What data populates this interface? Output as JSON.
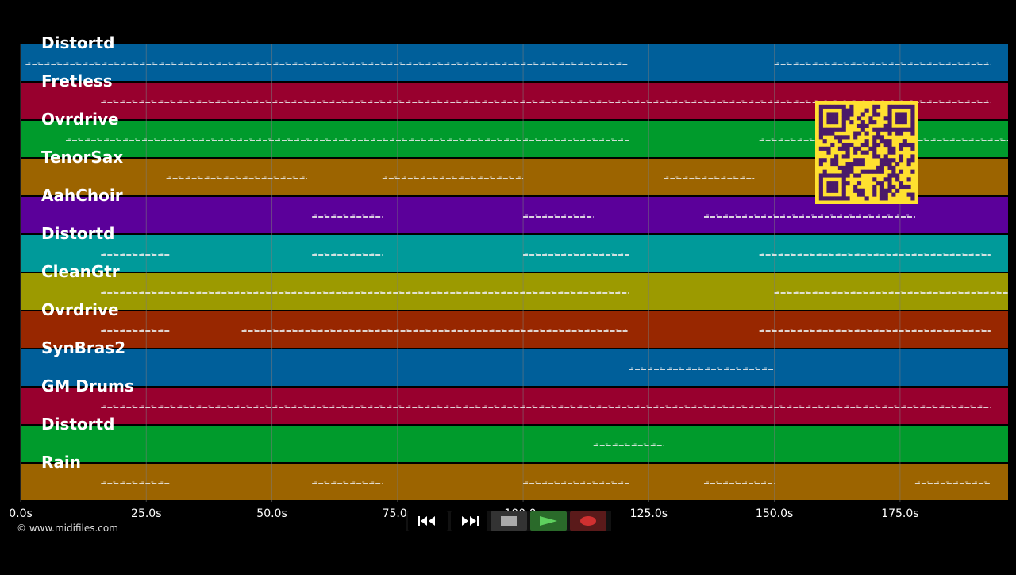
{
  "tracks": [
    {
      "label": "Distortd",
      "color": "#005f9a"
    },
    {
      "label": "Fretless",
      "color": "#98002e"
    },
    {
      "label": "Ovrdrive",
      "color": "#009b2c"
    },
    {
      "label": "TenorSax",
      "color": "#9c6400"
    },
    {
      "label": "AahChoir",
      "color": "#5b009a"
    },
    {
      "label": "Distortd",
      "color": "#009a9a"
    },
    {
      "label": "CleanGtr",
      "color": "#9c9a00"
    },
    {
      "label": "Ovrdrive",
      "color": "#982700"
    },
    {
      "label": "SynBras2",
      "color": "#005f9a"
    },
    {
      "label": "GM Drums",
      "color": "#98002e"
    },
    {
      "label": "Distortd",
      "color": "#009b2c"
    },
    {
      "label": "Rain",
      "color": "#9c6400"
    }
  ],
  "timeline": {
    "ticks": [
      "0.0s",
      "25.0s",
      "50.0s",
      "75.0s",
      "100.0s",
      "125.0s",
      "150.0s",
      "175.0s"
    ],
    "tick_values": [
      0,
      25,
      50,
      75,
      100,
      125,
      150,
      175
    ],
    "max": 196.5
  },
  "notes": [
    [
      [
        1,
        121
      ],
      [
        150,
        193
      ]
    ],
    [
      [
        16,
        150
      ],
      [
        150,
        193
      ]
    ],
    [
      [
        9,
        121
      ],
      [
        147,
        196.5
      ]
    ],
    [
      [
        29,
        57
      ],
      [
        72,
        100
      ],
      [
        128,
        146
      ]
    ],
    [
      [
        58,
        72
      ],
      [
        100,
        114
      ],
      [
        136,
        178
      ]
    ],
    [
      [
        16,
        30
      ],
      [
        58,
        72
      ],
      [
        100,
        121
      ],
      [
        147,
        193
      ]
    ],
    [
      [
        16,
        121
      ],
      [
        150,
        196.5
      ]
    ],
    [
      [
        16,
        30
      ],
      [
        44,
        121
      ],
      [
        147,
        193
      ]
    ],
    [
      [
        121,
        150
      ]
    ],
    [
      [
        16,
        193
      ]
    ],
    [
      [
        114,
        128
      ]
    ],
    [
      [
        16,
        30
      ],
      [
        58,
        72
      ],
      [
        100,
        121
      ],
      [
        136,
        150
      ],
      [
        178,
        193
      ]
    ]
  ],
  "copyright": "© www.midifiles.com",
  "transport": {
    "rewind": "rewind-icon",
    "fast_forward": "fast-forward-icon",
    "stop": "stop-icon",
    "play": "play-icon",
    "record": "record-icon"
  },
  "colors": {
    "grid": "#7a7a7a",
    "qr_background": "#ffe030",
    "qr_foreground": "#4a1a6a",
    "play": "#2a9a2a",
    "record": "#c03030"
  }
}
